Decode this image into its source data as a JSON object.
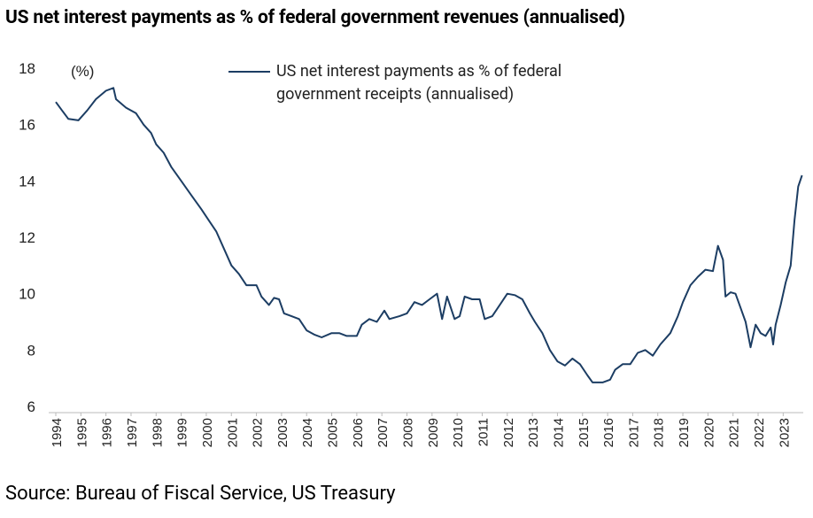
{
  "chart_data": {
    "type": "line",
    "title": "US net interest payments as % of federal government revenues (annualised)",
    "source": "Source: Bureau of Fiscal Service, US Treasury",
    "y_unit_label": "(%)",
    "x": [
      1994.0,
      1994.25,
      1994.5,
      1994.9,
      1995.25,
      1995.6,
      1996.0,
      1996.3,
      1996.4,
      1996.8,
      1997.2,
      1997.5,
      1997.8,
      1998.0,
      1998.3,
      1998.6,
      1999.0,
      1999.4,
      1999.8,
      2000.1,
      2000.4,
      2000.7,
      2001.0,
      2001.3,
      2001.6,
      2002.0,
      2002.2,
      2002.5,
      2002.7,
      2002.9,
      2003.1,
      2003.4,
      2003.7,
      2004.0,
      2004.3,
      2004.6,
      2005.0,
      2005.3,
      2005.6,
      2006.0,
      2006.2,
      2006.5,
      2006.8,
      2007.1,
      2007.3,
      2007.7,
      2008.0,
      2008.3,
      2008.6,
      2008.9,
      2009.2,
      2009.4,
      2009.6,
      2009.9,
      2010.1,
      2010.3,
      2010.6,
      2010.9,
      2011.1,
      2011.4,
      2011.7,
      2012.0,
      2012.3,
      2012.6,
      2012.9,
      2013.1,
      2013.4,
      2013.7,
      2014.0,
      2014.3,
      2014.6,
      2014.9,
      2015.2,
      2015.4,
      2015.8,
      2016.1,
      2016.3,
      2016.6,
      2016.9,
      2017.2,
      2017.5,
      2017.8,
      2018.1,
      2018.5,
      2018.8,
      2019.0,
      2019.3,
      2019.6,
      2019.9,
      2020.2,
      2020.4,
      2020.6,
      2020.7,
      2020.9,
      2021.1,
      2021.3,
      2021.5,
      2021.7,
      2021.9,
      2022.1,
      2022.3,
      2022.5,
      2022.6,
      2022.7,
      2022.9,
      2023.1,
      2023.3,
      2023.45,
      2023.6,
      2023.75
    ],
    "series": [
      {
        "name": "US net interest payments as % of federal government receipts (annualised)",
        "color": "#1c3d63",
        "values": [
          16.8,
          16.5,
          16.2,
          16.15,
          16.5,
          16.9,
          17.2,
          17.3,
          16.9,
          16.6,
          16.4,
          16.0,
          15.7,
          15.3,
          15.0,
          14.5,
          14.0,
          13.5,
          13.0,
          12.6,
          12.2,
          11.6,
          11.0,
          10.7,
          10.3,
          10.3,
          9.9,
          9.6,
          9.85,
          9.8,
          9.3,
          9.2,
          9.1,
          8.7,
          8.55,
          8.45,
          8.6,
          8.6,
          8.5,
          8.5,
          8.9,
          9.1,
          9.0,
          9.4,
          9.1,
          9.2,
          9.3,
          9.7,
          9.6,
          9.8,
          10.0,
          9.1,
          9.9,
          9.1,
          9.2,
          9.9,
          9.8,
          9.8,
          9.1,
          9.2,
          9.6,
          10.0,
          9.95,
          9.8,
          9.3,
          9.0,
          8.6,
          8.0,
          7.6,
          7.45,
          7.7,
          7.5,
          7.1,
          6.85,
          6.85,
          6.95,
          7.3,
          7.5,
          7.5,
          7.9,
          8.0,
          7.8,
          8.2,
          8.6,
          9.2,
          9.7,
          10.3,
          10.6,
          10.85,
          10.8,
          11.7,
          11.2,
          9.9,
          10.05,
          10.0,
          9.5,
          9.0,
          8.1,
          8.9,
          8.6,
          8.5,
          8.8,
          8.2,
          8.9,
          9.6,
          10.4,
          11.0,
          12.6,
          13.8,
          14.2
        ]
      }
    ],
    "xlim": [
      1994,
      2023.8
    ],
    "xticks": [
      1994,
      1995,
      1996,
      1997,
      1998,
      1999,
      2000,
      2001,
      2002,
      2003,
      2004,
      2005,
      2006,
      2007,
      2008,
      2009,
      2010,
      2011,
      2012,
      2013,
      2014,
      2015,
      2016,
      2017,
      2018,
      2019,
      2020,
      2021,
      2022,
      2023
    ],
    "ylim": [
      6,
      18
    ],
    "yticks": [
      6,
      8,
      10,
      12,
      14,
      16,
      18
    ],
    "grid": false,
    "legend": "top"
  }
}
